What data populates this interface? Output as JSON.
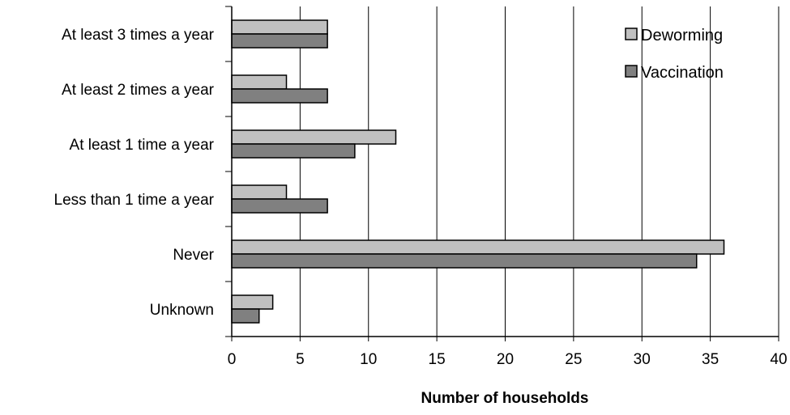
{
  "chart_data": {
    "type": "bar",
    "orientation": "horizontal",
    "title": "",
    "xlabel": "Number of households",
    "ylabel": "",
    "xlim": [
      0,
      40
    ],
    "x_ticks": [
      "0",
      "5",
      "10",
      "15",
      "20",
      "25",
      "30",
      "35",
      "40"
    ],
    "grid": "vertical",
    "legend_position": "top-right",
    "categories": [
      "At least 3 times a year",
      "At least 2 times a year",
      "At least 1 time a year",
      "Less than 1 time a year",
      "Never",
      "Unknown"
    ],
    "series": [
      {
        "name": "Deworming",
        "color": "#c0c0c0",
        "values": [
          7,
          4,
          12,
          4,
          36,
          3
        ]
      },
      {
        "name": "Vaccination",
        "color": "#808080",
        "values": [
          7,
          7,
          9,
          7,
          34,
          2
        ]
      }
    ]
  }
}
